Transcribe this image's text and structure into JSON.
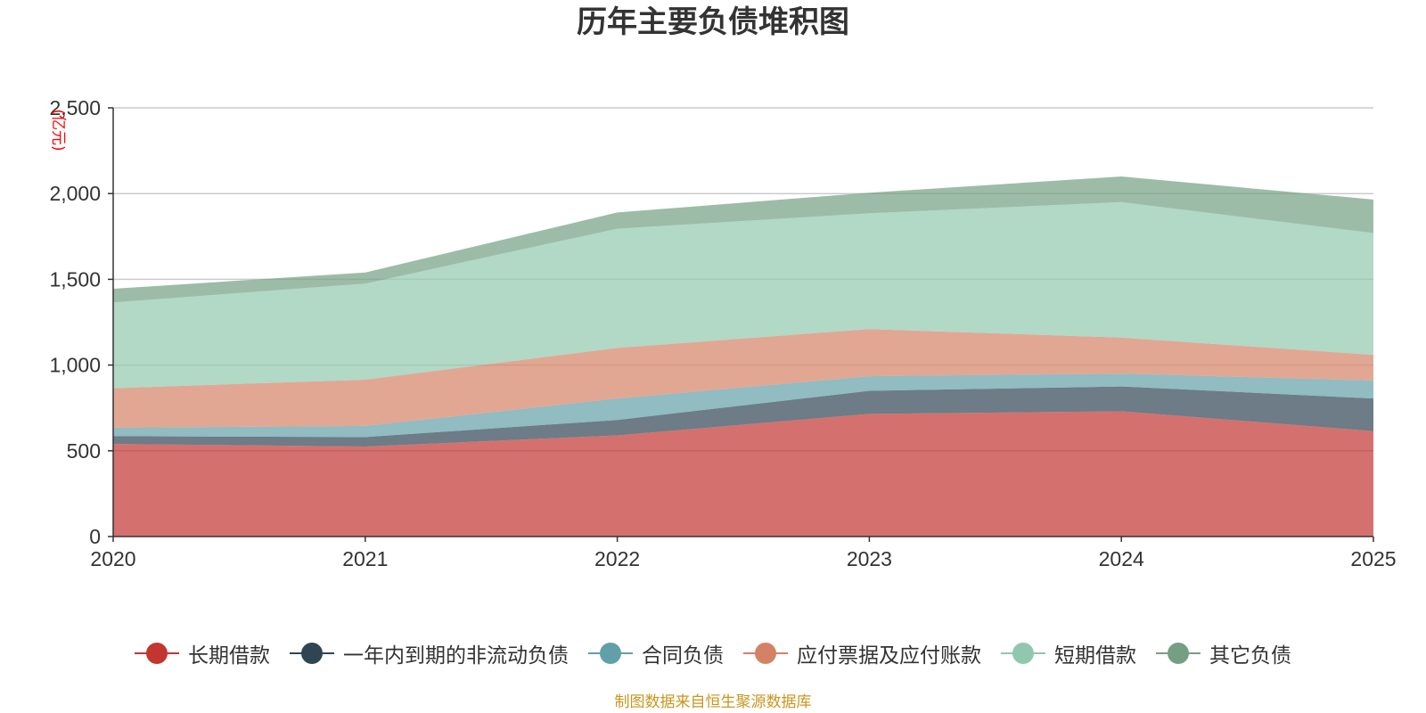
{
  "chart_data": {
    "type": "area",
    "stacked": true,
    "title": "历年主要负债堆积图",
    "ylabel": "亿元",
    "ylabel_color": "#ff0000",
    "x": [
      "2020",
      "2021",
      "2022",
      "2023",
      "2024",
      "2025"
    ],
    "ylim": [
      0,
      2500
    ],
    "yticks": [
      0,
      500,
      1000,
      1500,
      2000,
      2500
    ],
    "ytick_labels": [
      "0",
      "500",
      "1,000",
      "1,500",
      "2,000",
      "2,500"
    ],
    "grid": true,
    "legend_position": "bottom",
    "series": [
      {
        "name": "长期借款",
        "color": "#c23531",
        "values": [
          540,
          525,
          590,
          715,
          730,
          615
        ]
      },
      {
        "name": "一年内到期的非流动负债",
        "color": "#2f4554",
        "values": [
          45,
          55,
          90,
          135,
          145,
          190
        ]
      },
      {
        "name": "合同负债",
        "color": "#61a0a8",
        "values": [
          50,
          65,
          125,
          85,
          75,
          105
        ]
      },
      {
        "name": "应付票据及应付账款",
        "color": "#d48265",
        "values": [
          230,
          270,
          295,
          275,
          210,
          150
        ]
      },
      {
        "name": "短期借款",
        "color": "#91c7ae",
        "values": [
          500,
          560,
          695,
          675,
          790,
          710
        ]
      },
      {
        "name": "其它负债",
        "color": "#749f83",
        "values": [
          80,
          65,
          95,
          120,
          150,
          195
        ]
      }
    ]
  },
  "source_note": "制图数据来自恒生聚源数据库"
}
